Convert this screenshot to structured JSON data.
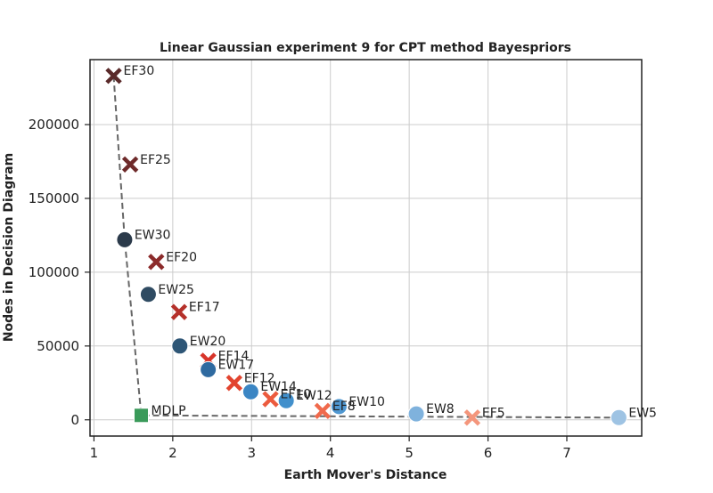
{
  "chart_data": {
    "type": "scatter",
    "title": "Linear Gaussian experiment 9 for CPT method Bayespriors",
    "xlabel": "Earth Mover's Distance",
    "ylabel": "Nodes in Decision Diagram",
    "xlim": [
      0.95,
      7.95
    ],
    "ylim": [
      -11000,
      244000
    ],
    "xticks": [
      "1",
      "2",
      "3",
      "4",
      "5",
      "6",
      "7"
    ],
    "yticks": [
      "0",
      "50000",
      "100000",
      "150000",
      "200000"
    ],
    "xtick_values": [
      1,
      2,
      3,
      4,
      5,
      6,
      7
    ],
    "ytick_values": [
      0,
      50000,
      100000,
      150000,
      200000
    ],
    "grid": true,
    "series": [
      {
        "marker": "x",
        "points": [
          {
            "label": "EF30",
            "x": 1.25,
            "y": 233000,
            "color": "#5a2a2a"
          },
          {
            "label": "EF25",
            "x": 1.46,
            "y": 173000,
            "color": "#6e2a2a"
          },
          {
            "label": "EF20",
            "x": 1.79,
            "y": 107000,
            "color": "#8b2a2a"
          },
          {
            "label": "EF17",
            "x": 2.08,
            "y": 73000,
            "color": "#b5302a"
          },
          {
            "label": "EF14",
            "x": 2.45,
            "y": 40000,
            "color": "#d8352a"
          },
          {
            "label": "EF12",
            "x": 2.78,
            "y": 25000,
            "color": "#e2442f"
          },
          {
            "label": "EF10",
            "x": 3.24,
            "y": 14000,
            "color": "#ec5b3e"
          },
          {
            "label": "EF8",
            "x": 3.9,
            "y": 6000,
            "color": "#f06a4c"
          },
          {
            "label": "EF5",
            "x": 5.8,
            "y": 1500,
            "color": "#f4967c"
          }
        ]
      },
      {
        "marker": "circle",
        "points": [
          {
            "label": "EW30",
            "x": 1.39,
            "y": 122000,
            "color": "#2b3a4a"
          },
          {
            "label": "EW25",
            "x": 1.69,
            "y": 85000,
            "color": "#2f4b62"
          },
          {
            "label": "EW20",
            "x": 2.09,
            "y": 50000,
            "color": "#2e5676"
          },
          {
            "label": "EW17",
            "x": 2.45,
            "y": 34000,
            "color": "#2f6aa0"
          },
          {
            "label": "EW14",
            "x": 2.99,
            "y": 19000,
            "color": "#3b86c4"
          },
          {
            "label": "EW12",
            "x": 3.44,
            "y": 13000,
            "color": "#4290cc"
          },
          {
            "label": "EW10",
            "x": 4.11,
            "y": 9000,
            "color": "#4f97d1"
          },
          {
            "label": "EW8",
            "x": 5.09,
            "y": 4000,
            "color": "#7fb2dd"
          },
          {
            "label": "EW5",
            "x": 7.66,
            "y": 1500,
            "color": "#9ec3e3"
          }
        ]
      },
      {
        "marker": "square",
        "points": [
          {
            "label": "MDLP",
            "x": 1.6,
            "y": 3000,
            "color": "#3a9a5a"
          }
        ]
      }
    ],
    "pareto_front": [
      {
        "x": 1.25,
        "y": 233000
      },
      {
        "x": 1.39,
        "y": 122000
      },
      {
        "x": 1.6,
        "y": 3000
      },
      {
        "x": 7.66,
        "y": 1500
      }
    ]
  }
}
